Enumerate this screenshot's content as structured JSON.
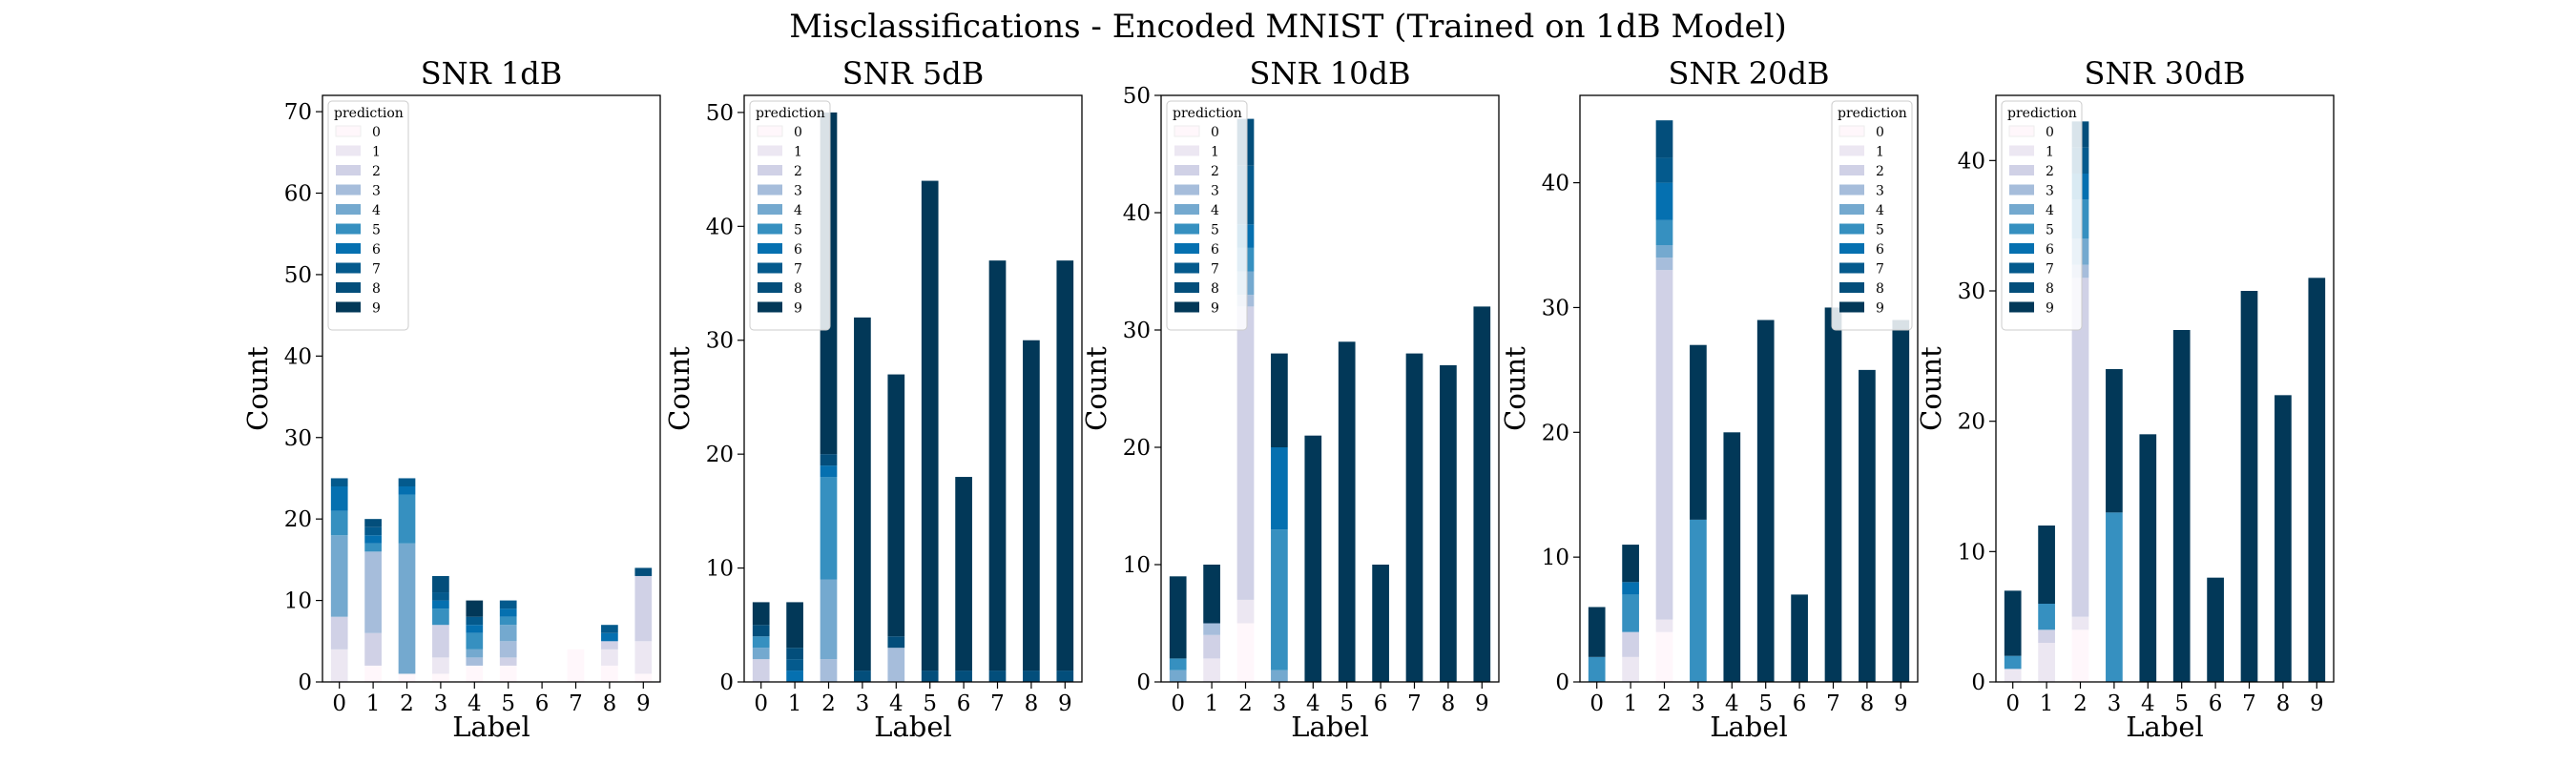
{
  "figure": {
    "suptitle": "Misclassifications - Encoded MNIST (Trained on 1dB Model)"
  },
  "chart_data": {
    "type": "bar",
    "stacked": true,
    "legend_title": "prediction",
    "legend_entries": [
      "0",
      "1",
      "2",
      "3",
      "4",
      "5",
      "6",
      "7",
      "8",
      "9"
    ],
    "colors": [
      "#fff7fb",
      "#ece7f2",
      "#d0d1e6",
      "#a6bddb",
      "#74a9cf",
      "#3690c0",
      "#0570b0",
      "#045a8d",
      "#034e7b",
      "#023858"
    ],
    "categories": [
      "0",
      "1",
      "2",
      "3",
      "4",
      "5",
      "6",
      "7",
      "8",
      "9"
    ],
    "panels": [
      {
        "title": "SNR 1dB",
        "xlabel": "Label",
        "ylabel": "Count",
        "ylim": [
          0,
          72
        ],
        "yticks": [
          0,
          10,
          20,
          30,
          40,
          50,
          60,
          70
        ],
        "legend_position": "top-left",
        "stacks": [
          [
            0,
            2,
            1,
            1,
            2,
            2,
            0,
            4,
            2,
            1
          ],
          [
            4,
            0,
            0,
            2,
            0,
            0,
            0,
            0,
            2,
            4
          ],
          [
            4,
            4,
            0,
            4,
            0,
            1,
            0,
            0,
            1,
            8
          ],
          [
            0,
            10,
            0,
            0,
            1,
            2,
            0,
            0,
            0,
            0
          ],
          [
            10,
            0,
            16,
            0,
            1,
            2,
            0,
            0,
            0,
            0
          ],
          [
            3,
            1,
            6,
            2,
            2,
            1,
            0,
            0,
            0,
            0
          ],
          [
            3,
            1,
            1,
            1,
            1,
            1,
            0,
            0,
            1,
            0
          ],
          [
            1,
            1,
            1,
            1,
            1,
            1,
            0,
            0,
            1,
            0
          ],
          [
            0,
            1,
            0,
            2,
            0,
            0,
            0,
            0,
            0,
            1
          ],
          [
            0,
            0,
            0,
            0,
            2,
            0,
            0,
            0,
            0,
            0
          ]
        ]
      },
      {
        "title": "SNR 5dB",
        "xlabel": "Label",
        "ylabel": "Count",
        "ylim": [
          0,
          51.5
        ],
        "yticks": [
          0,
          10,
          20,
          30,
          40,
          50
        ],
        "legend_position": "top-left",
        "stacks": [
          [
            0,
            0,
            0,
            0,
            0,
            0,
            0,
            0,
            0,
            0
          ],
          [
            0,
            0,
            0,
            0,
            0,
            0,
            0,
            0,
            0,
            0
          ],
          [
            2,
            0,
            0,
            0,
            0,
            0,
            0,
            0,
            0,
            0
          ],
          [
            0,
            0,
            2,
            0,
            3,
            0,
            0,
            0,
            0,
            0
          ],
          [
            1,
            0,
            7,
            0,
            0,
            0,
            0,
            0,
            0,
            0
          ],
          [
            1,
            0,
            9,
            0,
            0,
            0,
            0,
            0,
            0,
            0
          ],
          [
            0,
            1,
            1,
            0,
            0,
            0,
            0,
            0,
            0,
            0
          ],
          [
            0,
            1,
            0,
            0,
            0,
            0,
            0,
            0,
            0,
            0
          ],
          [
            1,
            1,
            1,
            1,
            1,
            1,
            1,
            1,
            1,
            1
          ],
          [
            2,
            4,
            30,
            31,
            23,
            43,
            17,
            36,
            29,
            36
          ]
        ]
      },
      {
        "title": "SNR 10dB",
        "xlabel": "Label",
        "ylabel": "Count",
        "ylim": [
          0,
          50
        ],
        "yticks": [
          0,
          10,
          20,
          30,
          40,
          50
        ],
        "legend_position": "top-left",
        "stacks": [
          [
            0,
            0,
            5,
            0,
            0,
            0,
            0,
            0,
            0,
            0
          ],
          [
            0,
            2,
            2,
            0,
            0,
            0,
            0,
            0,
            0,
            0
          ],
          [
            0,
            2,
            25,
            0,
            0,
            0,
            0,
            0,
            0,
            0
          ],
          [
            0,
            1,
            1,
            0,
            0,
            0,
            0,
            0,
            0,
            0
          ],
          [
            1,
            0,
            2,
            1,
            0,
            0,
            0,
            0,
            0,
            0
          ],
          [
            1,
            0,
            2,
            12,
            0,
            0,
            0,
            0,
            0,
            0
          ],
          [
            0,
            0,
            2,
            7,
            0,
            0,
            0,
            0,
            0,
            0
          ],
          [
            0,
            0,
            5,
            0,
            0,
            0,
            0,
            0,
            0,
            0
          ],
          [
            0,
            0,
            4,
            0,
            0,
            0,
            0,
            0,
            0,
            0
          ],
          [
            7,
            5,
            0,
            8,
            21,
            29,
            10,
            28,
            27,
            32
          ]
        ]
      },
      {
        "title": "SNR 20dB",
        "xlabel": "Label",
        "ylabel": "Count",
        "ylim": [
          0,
          47
        ],
        "yticks": [
          0,
          10,
          20,
          30,
          40
        ],
        "legend_position": "top-right",
        "stacks": [
          [
            0,
            0,
            4,
            0,
            0,
            0,
            0,
            0,
            0,
            0
          ],
          [
            0,
            2,
            1,
            0,
            0,
            0,
            0,
            0,
            0,
            0
          ],
          [
            0,
            2,
            28,
            0,
            0,
            0,
            0,
            0,
            0,
            0
          ],
          [
            0,
            0,
            1,
            0,
            0,
            0,
            0,
            0,
            0,
            0
          ],
          [
            0,
            0,
            1,
            0,
            0,
            0,
            0,
            0,
            0,
            0
          ],
          [
            2,
            3,
            2,
            13,
            0,
            0,
            0,
            0,
            0,
            0
          ],
          [
            0,
            1,
            3,
            0,
            0,
            0,
            0,
            0,
            0,
            0
          ],
          [
            0,
            0,
            2,
            0,
            0,
            0,
            0,
            0,
            0,
            0
          ],
          [
            0,
            0,
            3,
            0,
            0,
            0,
            0,
            0,
            0,
            0
          ],
          [
            4,
            3,
            0,
            14,
            20,
            29,
            7,
            30,
            25,
            29
          ]
        ]
      },
      {
        "title": "SNR 30dB",
        "xlabel": "Label",
        "ylabel": "Count",
        "ylim": [
          0,
          45
        ],
        "yticks": [
          0,
          10,
          20,
          30,
          40
        ],
        "legend_position": "top-left",
        "stacks": [
          [
            0,
            0,
            4,
            0,
            0,
            0,
            0,
            0,
            0,
            0
          ],
          [
            1,
            3,
            1,
            0,
            0,
            0,
            0,
            0,
            0,
            0
          ],
          [
            0,
            1,
            26,
            0,
            0,
            0,
            0,
            0,
            0,
            0
          ],
          [
            0,
            0,
            1,
            0,
            0,
            0,
            0,
            0,
            0,
            0
          ],
          [
            0,
            0,
            2,
            0,
            0,
            0,
            0,
            0,
            0,
            0
          ],
          [
            1,
            2,
            3,
            13,
            0,
            0,
            0,
            0,
            0,
            0
          ],
          [
            0,
            0,
            2,
            0,
            0,
            0,
            0,
            0,
            0,
            0
          ],
          [
            0,
            0,
            2,
            0,
            0,
            0,
            0,
            0,
            0,
            0
          ],
          [
            0,
            0,
            2,
            0,
            0,
            0,
            0,
            0,
            0,
            0
          ],
          [
            5,
            6,
            0,
            11,
            19,
            27,
            8,
            30,
            22,
            31
          ]
        ]
      }
    ]
  }
}
